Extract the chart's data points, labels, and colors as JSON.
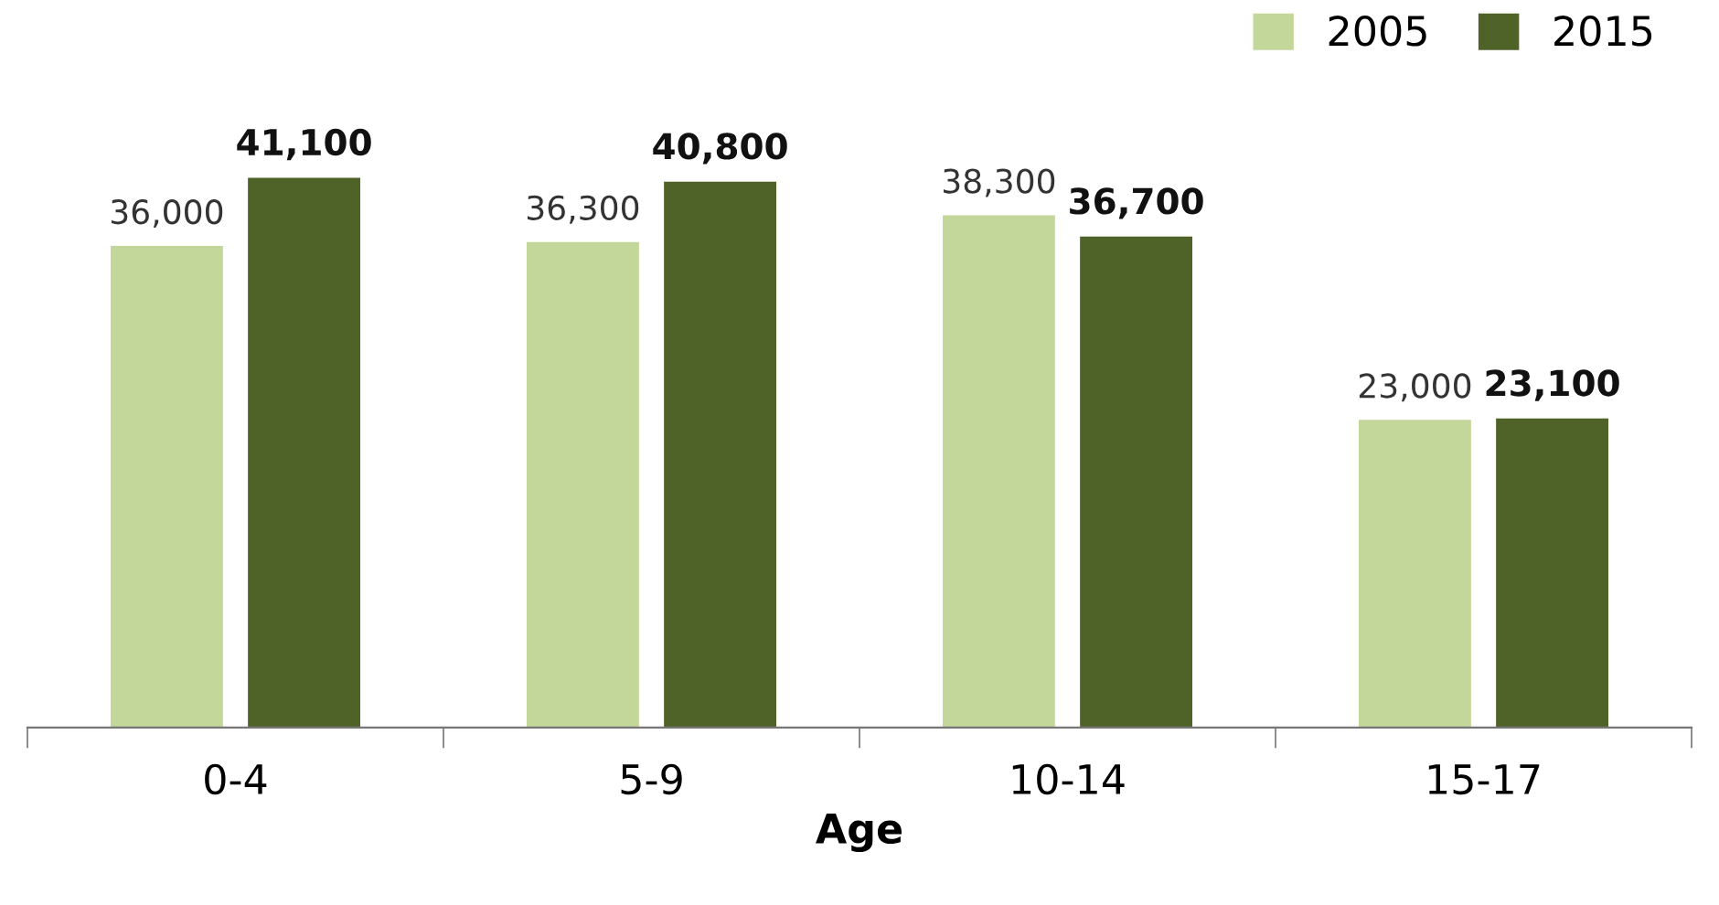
{
  "chart_data": {
    "type": "bar",
    "xlabel": "Age",
    "categories": [
      "0-4",
      "5-9",
      "10-14",
      "15-17"
    ],
    "series": [
      {
        "name": "2005",
        "color": "#c4d79b",
        "values": [
          36000,
          36300,
          38300,
          23000
        ],
        "value_labels": [
          "36,000",
          "36,300",
          "38,300",
          "23,000"
        ]
      },
      {
        "name": "2015",
        "color": "#4f6228",
        "values": [
          41100,
          40800,
          36700,
          23100
        ],
        "value_labels": [
          "41,100",
          "40,800",
          "36,700",
          "23,100"
        ]
      }
    ],
    "tick_labels": "x",
    "legend": "top right",
    "grid": false
  }
}
